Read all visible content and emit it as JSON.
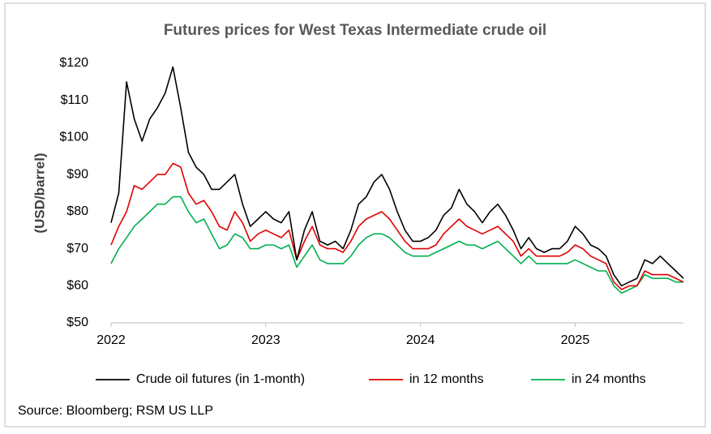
{
  "chart_data": {
    "type": "line",
    "title": "Futures prices for West Texas Intermediate crude oil",
    "y_label": "(USD/barrel)",
    "source": "Source: Bloomberg; RSM US LLP",
    "x": [
      2022.0,
      2022.05,
      2022.1,
      2022.15,
      2022.2,
      2022.25,
      2022.3,
      2022.35,
      2022.4,
      2022.45,
      2022.5,
      2022.55,
      2022.6,
      2022.65,
      2022.7,
      2022.75,
      2022.8,
      2022.85,
      2022.9,
      2022.95,
      2023.0,
      2023.05,
      2023.1,
      2023.15,
      2023.2,
      2023.25,
      2023.3,
      2023.35,
      2023.4,
      2023.45,
      2023.5,
      2023.55,
      2023.6,
      2023.65,
      2023.7,
      2023.75,
      2023.8,
      2023.85,
      2023.9,
      2023.95,
      2024.0,
      2024.05,
      2024.1,
      2024.15,
      2024.2,
      2024.25,
      2024.3,
      2024.35,
      2024.4,
      2024.45,
      2024.5,
      2024.55,
      2024.6,
      2024.65,
      2024.7,
      2024.75,
      2024.8,
      2024.85,
      2024.9,
      2024.95,
      2025.0,
      2025.05,
      2025.1,
      2025.15,
      2025.2,
      2025.25,
      2025.3,
      2025.35,
      2025.4,
      2025.45,
      2025.5,
      2025.55,
      2025.6,
      2025.65,
      2025.7
    ],
    "xlim": [
      2022,
      2025.7
    ],
    "xticks": [
      2022,
      2023,
      2024,
      2025
    ],
    "ylim": [
      50,
      120
    ],
    "yticks": [
      {
        "value": 50,
        "label": "$50"
      },
      {
        "value": 60,
        "label": "$60"
      },
      {
        "value": 70,
        "label": "$70"
      },
      {
        "value": 80,
        "label": "$80"
      },
      {
        "value": 90,
        "label": "$90"
      },
      {
        "value": 100,
        "label": "$100"
      },
      {
        "value": 110,
        "label": "$110"
      },
      {
        "value": 120,
        "label": "$120"
      }
    ],
    "grid": false,
    "series": [
      {
        "name": "Crude oil futures (in 1-month)",
        "color": "#000000",
        "values": [
          77,
          85,
          115,
          105,
          99,
          105,
          108,
          112,
          119,
          108,
          96,
          92,
          90,
          86,
          86,
          88,
          90,
          82,
          76,
          78,
          80,
          78,
          77,
          80,
          67,
          75,
          80,
          72,
          71,
          72,
          70,
          75,
          82,
          84,
          88,
          90,
          86,
          80,
          75,
          72,
          72,
          73,
          75,
          79,
          81,
          86,
          82,
          80,
          77,
          80,
          82,
          79,
          75,
          70,
          73,
          70,
          69,
          70,
          70,
          72,
          76,
          74,
          71,
          70,
          68,
          63,
          60,
          61,
          62,
          67,
          66,
          68,
          66,
          64,
          62
        ]
      },
      {
        "name": "in 12 months",
        "color": "#e00000",
        "values": [
          71,
          76,
          80,
          87,
          86,
          88,
          90,
          90,
          93,
          92,
          85,
          82,
          83,
          80,
          76,
          75,
          80,
          77,
          72,
          74,
          75,
          74,
          73,
          75,
          67,
          72,
          76,
          71,
          70,
          70,
          69,
          72,
          76,
          78,
          79,
          80,
          78,
          75,
          72,
          70,
          70,
          70,
          71,
          74,
          76,
          78,
          76,
          75,
          74,
          75,
          76,
          74,
          72,
          68,
          70,
          68,
          68,
          68,
          68,
          69,
          71,
          70,
          68,
          67,
          66,
          61,
          59,
          60,
          60,
          64,
          63,
          63,
          63,
          62,
          61
        ]
      },
      {
        "name": "in 24 months",
        "color": "#00b050",
        "values": [
          66,
          70,
          73,
          76,
          78,
          80,
          82,
          82,
          84,
          84,
          80,
          77,
          78,
          74,
          70,
          71,
          74,
          73,
          70,
          70,
          71,
          71,
          70,
          71,
          65,
          68,
          71,
          67,
          66,
          66,
          66,
          68,
          71,
          73,
          74,
          74,
          73,
          71,
          69,
          68,
          68,
          68,
          69,
          70,
          71,
          72,
          71,
          71,
          70,
          71,
          72,
          70,
          68,
          66,
          68,
          66,
          66,
          66,
          66,
          66,
          67,
          66,
          65,
          64,
          64,
          60,
          58,
          59,
          60,
          63,
          62,
          62,
          62,
          61,
          61
        ]
      }
    ]
  }
}
